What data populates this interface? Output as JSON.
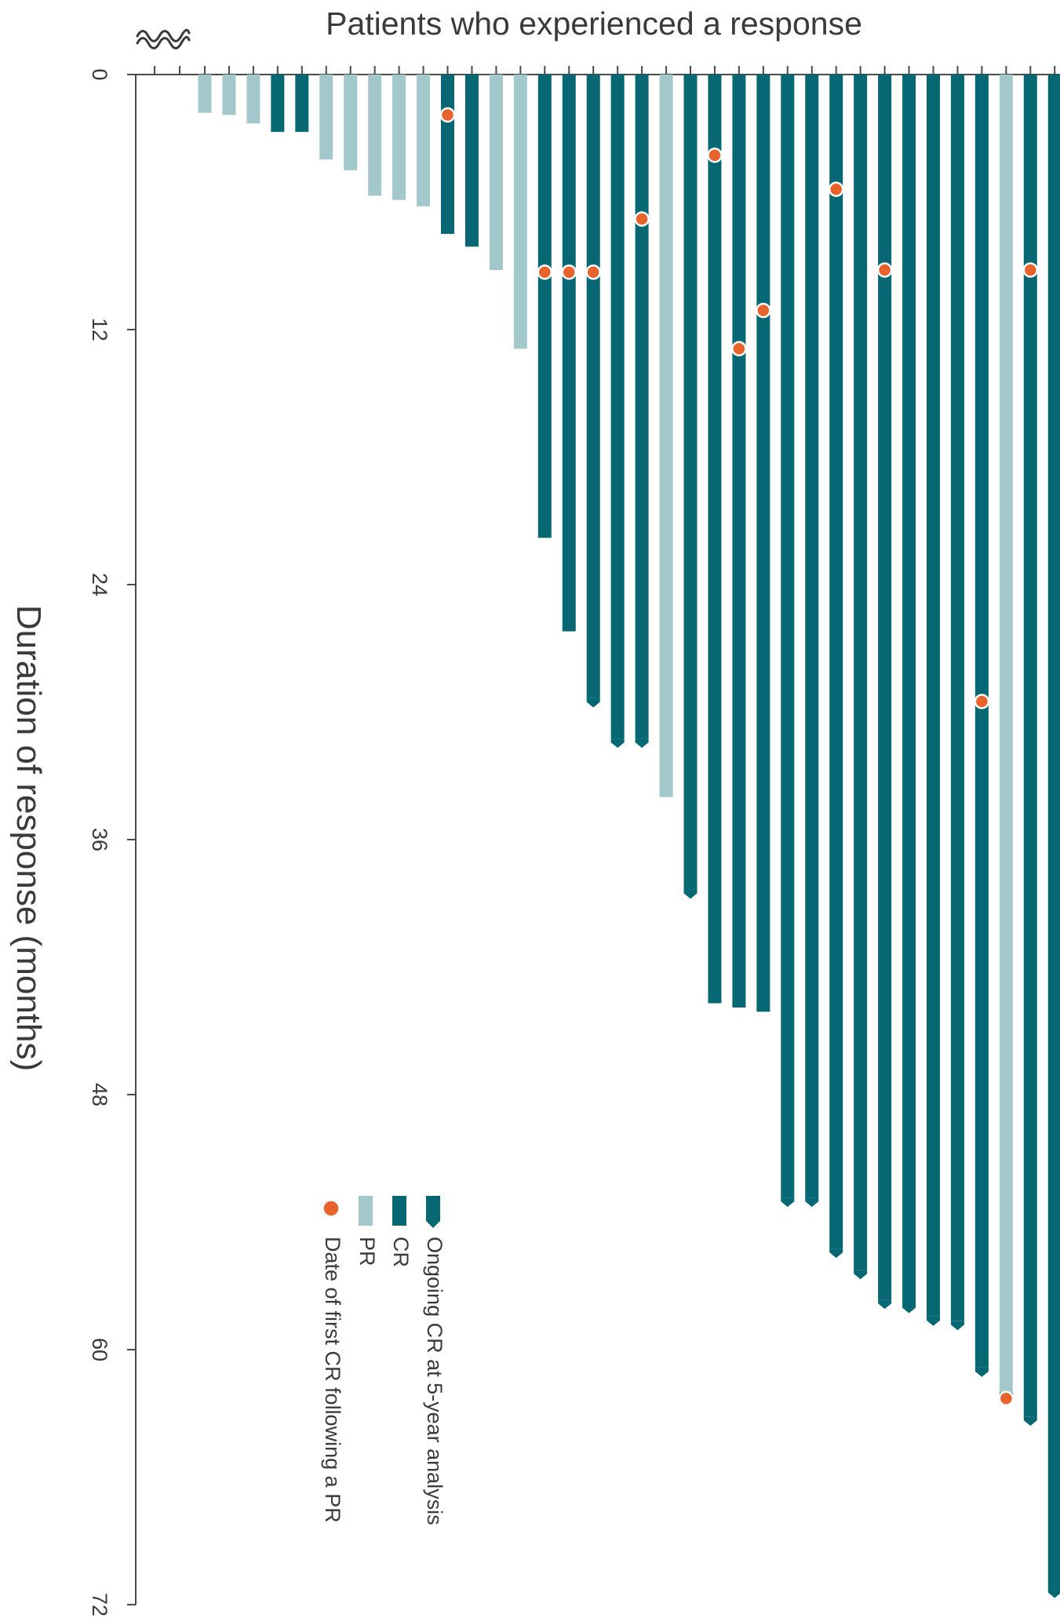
{
  "chart_data": {
    "type": "bar",
    "orientation": "vertical-downward",
    "title": "Patients who experienced a response",
    "ylabel": "Duration of response (months)",
    "ylim": [
      0,
      72
    ],
    "yticks": [
      0,
      12,
      24,
      36,
      48,
      60,
      72
    ],
    "ytick_labels": [
      "0",
      "12",
      "24",
      "36",
      "48",
      "60",
      "72"
    ],
    "grid": false,
    "axis_break": true,
    "legend_placement": "lower-middle",
    "colors": {
      "pr": "#a2c8cc",
      "cr": "#076874",
      "marker": "#e8622c"
    },
    "legend": [
      {
        "key": "ongoing",
        "label": "Ongoing CR at 5-year analysis"
      },
      {
        "key": "cr",
        "label": "CR"
      },
      {
        "key": "pr",
        "label": "PR"
      },
      {
        "key": "marker",
        "label": "Date of first CR following a PR"
      }
    ],
    "patients": [
      {
        "response": "PR",
        "months": 1.8,
        "ongoing": false
      },
      {
        "response": "PR",
        "months": 1.9,
        "ongoing": false
      },
      {
        "response": "PR",
        "months": 2.3,
        "ongoing": false
      },
      {
        "response": "CR",
        "months": 2.7,
        "ongoing": false
      },
      {
        "response": "CR",
        "months": 2.7,
        "ongoing": false
      },
      {
        "response": "PR",
        "months": 4.0,
        "ongoing": false
      },
      {
        "response": "PR",
        "months": 4.5,
        "ongoing": false
      },
      {
        "response": "PR",
        "months": 5.7,
        "ongoing": false
      },
      {
        "response": "PR",
        "months": 5.9,
        "ongoing": false
      },
      {
        "response": "PR",
        "months": 6.2,
        "ongoing": false
      },
      {
        "response": "CR",
        "months": 7.5,
        "ongoing": false,
        "first_cr": 1.9
      },
      {
        "response": "CR",
        "months": 8.1,
        "ongoing": false
      },
      {
        "response": "PR",
        "months": 9.2,
        "ongoing": false
      },
      {
        "response": "PR",
        "months": 12.9,
        "ongoing": false
      },
      {
        "response": "CR",
        "months": 21.8,
        "ongoing": false,
        "first_cr": 9.3
      },
      {
        "response": "CR",
        "months": 26.2,
        "ongoing": false,
        "first_cr": 9.3
      },
      {
        "response": "CR",
        "months": 29.6,
        "ongoing": true,
        "first_cr": 9.3
      },
      {
        "response": "CR",
        "months": 31.5,
        "ongoing": true
      },
      {
        "response": "CR",
        "months": 31.5,
        "ongoing": true,
        "first_cr": 6.8
      },
      {
        "response": "PR",
        "months": 34.0,
        "ongoing": false
      },
      {
        "response": "CR",
        "months": 38.6,
        "ongoing": true
      },
      {
        "response": "CR",
        "months": 43.7,
        "ongoing": false,
        "first_cr": 3.8
      },
      {
        "response": "CR",
        "months": 43.9,
        "ongoing": false,
        "first_cr": 12.9
      },
      {
        "response": "CR",
        "months": 44.1,
        "ongoing": false,
        "first_cr": 11.1
      },
      {
        "response": "CR",
        "months": 53.1,
        "ongoing": true
      },
      {
        "response": "CR",
        "months": 53.1,
        "ongoing": true
      },
      {
        "response": "CR",
        "months": 55.5,
        "ongoing": true,
        "first_cr": 5.4
      },
      {
        "response": "CR",
        "months": 56.5,
        "ongoing": true
      },
      {
        "response": "CR",
        "months": 57.9,
        "ongoing": true,
        "first_cr": 9.2
      },
      {
        "response": "CR",
        "months": 58.1,
        "ongoing": true
      },
      {
        "response": "CR",
        "months": 58.7,
        "ongoing": true
      },
      {
        "response": "CR",
        "months": 58.9,
        "ongoing": true
      },
      {
        "response": "CR",
        "months": 61.1,
        "ongoing": true,
        "first_cr": 29.5
      },
      {
        "response": "PR",
        "months": 62.3,
        "ongoing": true,
        "first_cr": 62.3
      },
      {
        "response": "CR",
        "months": 63.4,
        "ongoing": true,
        "first_cr": 9.2
      },
      {
        "response": "CR",
        "months": 71.5,
        "ongoing": true
      }
    ]
  }
}
